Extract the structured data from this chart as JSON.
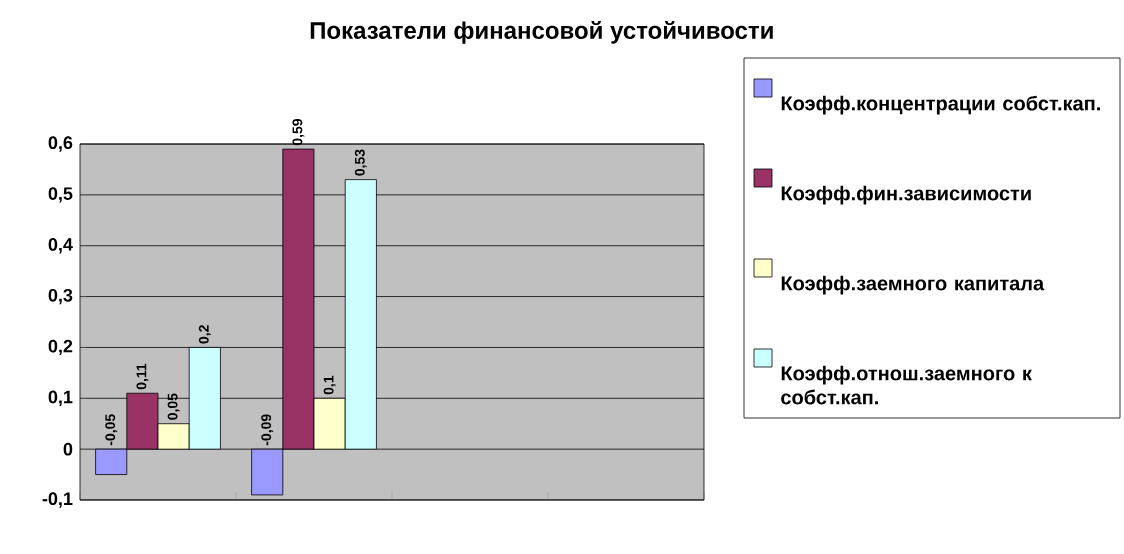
{
  "chart_data": {
    "type": "bar",
    "title": "Показатели финансовой устойчивости",
    "categories": [
      null,
      null,
      null,
      null
    ],
    "series": [
      {
        "name": "Коэфф.концентрации собст.кап.",
        "color": "#9999ff",
        "values": [
          -0.05,
          -0.09,
          null,
          null
        ],
        "value_labels": [
          "-0,05",
          "-0,09",
          null,
          null
        ]
      },
      {
        "name": "Коэфф.фин.зависимости",
        "color": "#993366",
        "values": [
          0.11,
          0.59,
          null,
          null
        ],
        "value_labels": [
          "0,11",
          "0,59",
          null,
          null
        ]
      },
      {
        "name": "Коэфф.заемного капитала",
        "color": "#ffffcc",
        "values": [
          0.05,
          0.1,
          null,
          null
        ],
        "value_labels": [
          "0,05",
          "0,1",
          null,
          null
        ]
      },
      {
        "name": "Коэфф.отнош.заемного к собст.кап.",
        "color": "#ccffff",
        "values": [
          0.2,
          0.53,
          null,
          null
        ],
        "value_labels": [
          "0,2",
          "0,53",
          null,
          null
        ]
      }
    ],
    "ylim": [
      -0.1,
      0.6
    ],
    "yticks": [
      {
        "value": -0.1,
        "label": "-0,1"
      },
      0,
      {
        "value": 0.1,
        "label": "0,1"
      },
      {
        "value": 0.2,
        "label": "0,2"
      },
      {
        "value": 0.3,
        "label": "0,3"
      },
      {
        "value": 0.4,
        "label": "0,4"
      },
      {
        "value": 0.5,
        "label": "0,5"
      },
      {
        "value": 0.6,
        "label": "0,6"
      }
    ],
    "grid": "y",
    "legend": "right"
  }
}
